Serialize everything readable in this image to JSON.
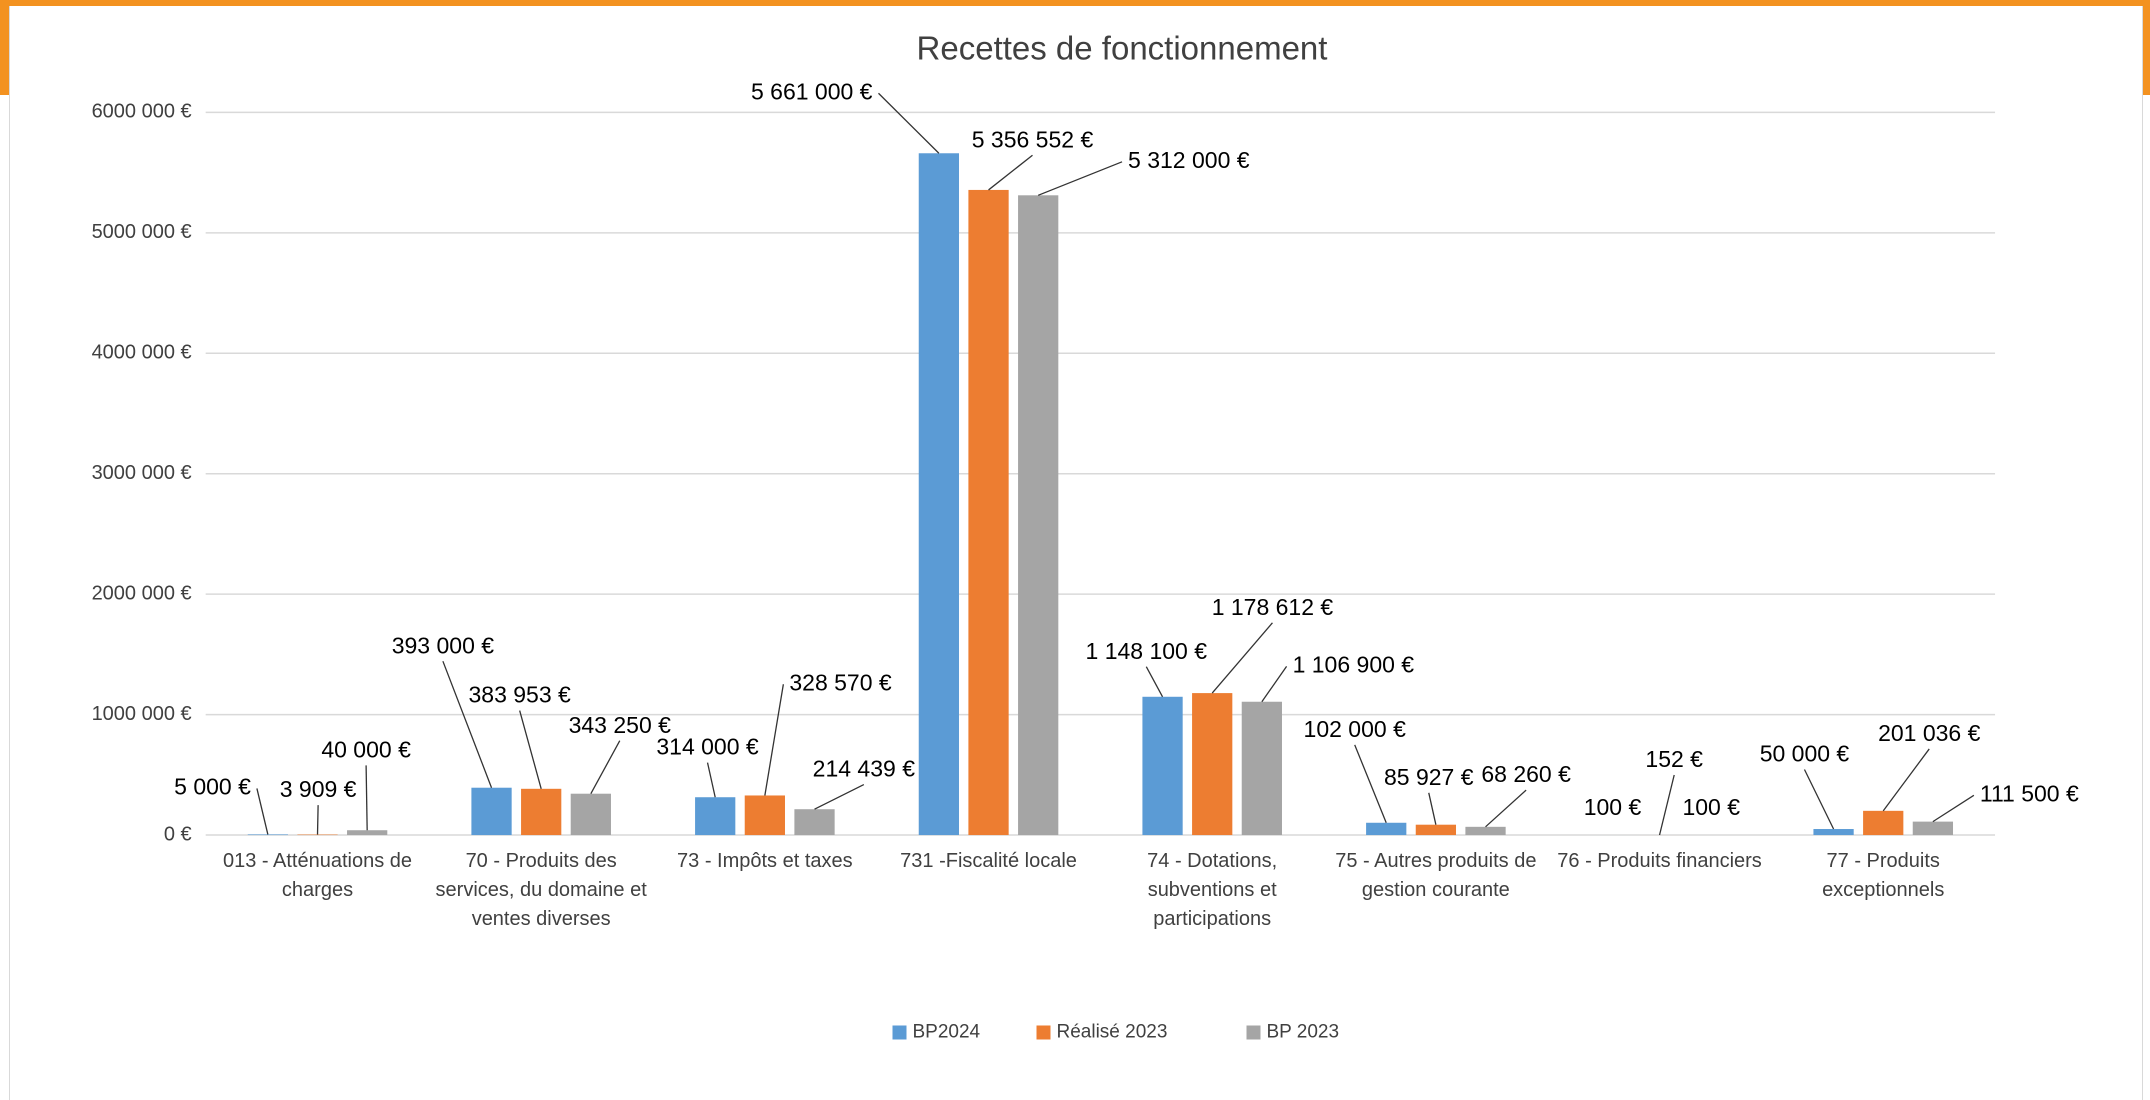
{
  "chart_data": {
    "type": "bar",
    "title": "Recettes de fonctionnement",
    "categories": [
      "013 - Atténuations de charges",
      "70 - Produits des services, du domaine et ventes diverses",
      "73 - Impôts et taxes",
      "731 -Fiscalité locale",
      "74 - Dotations, subventions et participations",
      "75 - Autres produits de gestion courante",
      "76 - Produits financiers",
      "77 - Produits exceptionnels"
    ],
    "series": [
      {
        "name": "BP2024",
        "color": "#5b9bd5",
        "values": [
          5000,
          393000,
          314000,
          5661000,
          1148100,
          102000,
          100,
          50000
        ],
        "value_labels": [
          "5 000 €",
          "393 000 €",
          "314 000 €",
          "5 661 000 €",
          "1 148 100 €",
          "102 000 €",
          "100 €",
          "50 000 €"
        ]
      },
      {
        "name": "Réalisé 2023",
        "color": "#ed7d31",
        "values": [
          3909,
          383953,
          328570,
          5356552,
          1178612,
          85927,
          152,
          201036
        ],
        "value_labels": [
          "3 909 €",
          "383 953 €",
          "328 570 €",
          "5 356 552 €",
          "1 178 612 €",
          "85 927 €",
          "152 €",
          "201 036 €"
        ]
      },
      {
        "name": "BP 2023",
        "color": "#a5a5a5",
        "values": [
          40000,
          343250,
          214439,
          5312000,
          1106900,
          68260,
          100,
          111500
        ],
        "value_labels": [
          "40 000 €",
          "343 250 €",
          "214 439 €",
          "5 312 000 €",
          "1 106 900 €",
          "68 260 €",
          "100 €",
          "111 500 €"
        ]
      }
    ],
    "ylim": [
      0,
      6000000
    ],
    "yticks": [
      {
        "value": 0,
        "label": "0 €"
      },
      {
        "value": 1000000,
        "label": "1000 000 €"
      },
      {
        "value": 2000000,
        "label": "2000 000 €"
      },
      {
        "value": 3000000,
        "label": "3000 000 €"
      },
      {
        "value": 4000000,
        "label": "4000 000 €"
      },
      {
        "value": 5000000,
        "label": "5000 000 €"
      },
      {
        "value": 6000000,
        "label": "6000 000 €"
      }
    ],
    "grid": true,
    "legend": "bottom"
  }
}
